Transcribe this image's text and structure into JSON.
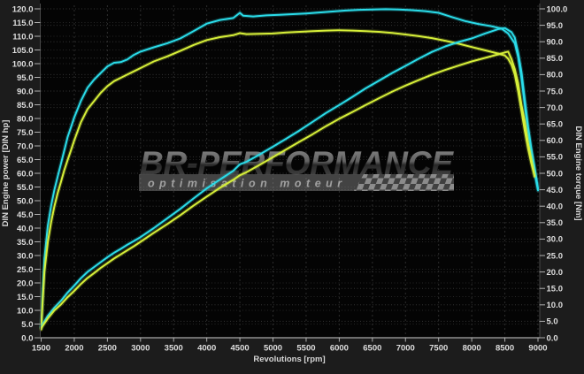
{
  "watermark": {
    "brand": "BR-PERFORMANCE",
    "tagline": "optimisation moteur"
  },
  "chart_data": {
    "type": "line",
    "title": "",
    "xlabel": "Revolutions [rpm]",
    "ylabel_left": "DIN Engine power [DIN hp]",
    "ylabel_right": "DIN Engine torque [Nm]",
    "x_range": [
      1500,
      9000
    ],
    "x_step": 500,
    "y_left_range": [
      0,
      120
    ],
    "y_left_step": 5,
    "y_right_range": [
      0,
      100
    ],
    "y_right_step": 5,
    "grid": true,
    "legend": "none",
    "plot_bg": "#040404",
    "outer_bg": "#1c1c1c",
    "colors": {
      "cyan": "#2adce9",
      "yellow": "#d6ef39"
    },
    "series": [
      {
        "name": "torque-cyan",
        "axis": "right",
        "unit": "Nm",
        "color": "#2adce9",
        "points": [
          [
            1500,
            3
          ],
          [
            1520,
            12
          ],
          [
            1550,
            24
          ],
          [
            1600,
            34
          ],
          [
            1650,
            40
          ],
          [
            1700,
            45
          ],
          [
            1750,
            49
          ],
          [
            1800,
            53
          ],
          [
            1850,
            57
          ],
          [
            1900,
            61
          ],
          [
            1950,
            64
          ],
          [
            2000,
            67
          ],
          [
            2100,
            72
          ],
          [
            2200,
            76
          ],
          [
            2300,
            78.5
          ],
          [
            2400,
            80.5
          ],
          [
            2500,
            82.5
          ],
          [
            2600,
            83.6
          ],
          [
            2700,
            83.8
          ],
          [
            2800,
            84.6
          ],
          [
            2900,
            86
          ],
          [
            3000,
            87
          ],
          [
            3200,
            88.3
          ],
          [
            3400,
            89.5
          ],
          [
            3600,
            91
          ],
          [
            3800,
            93.2
          ],
          [
            4000,
            95.5
          ],
          [
            4200,
            96.6
          ],
          [
            4400,
            97.2
          ],
          [
            4500,
            98.8
          ],
          [
            4550,
            97.9
          ],
          [
            4700,
            97.7
          ],
          [
            4900,
            98
          ],
          [
            5100,
            98.2
          ],
          [
            5300,
            98.4
          ],
          [
            5500,
            98.6
          ],
          [
            5700,
            98.9
          ],
          [
            5900,
            99.2
          ],
          [
            6100,
            99.5
          ],
          [
            6300,
            99.7
          ],
          [
            6500,
            99.8
          ],
          [
            6700,
            99.9
          ],
          [
            6900,
            99.8
          ],
          [
            7100,
            99.6
          ],
          [
            7300,
            99.3
          ],
          [
            7500,
            98.8
          ],
          [
            7700,
            97.5
          ],
          [
            7900,
            96.3
          ],
          [
            8100,
            95.4
          ],
          [
            8300,
            94.7
          ],
          [
            8450,
            94
          ],
          [
            8550,
            92.5
          ],
          [
            8650,
            89.5
          ],
          [
            8700,
            85.5
          ],
          [
            8750,
            79
          ],
          [
            8800,
            71
          ],
          [
            8850,
            63
          ],
          [
            8900,
            56
          ],
          [
            8950,
            50
          ],
          [
            9000,
            44.8
          ]
        ]
      },
      {
        "name": "torque-yellow",
        "axis": "right",
        "unit": "Nm",
        "color": "#d6ef39",
        "points": [
          [
            1500,
            2.5
          ],
          [
            1520,
            10
          ],
          [
            1550,
            20
          ],
          [
            1600,
            29
          ],
          [
            1650,
            35
          ],
          [
            1700,
            40
          ],
          [
            1750,
            44
          ],
          [
            1800,
            47.5
          ],
          [
            1850,
            51
          ],
          [
            1900,
            54
          ],
          [
            1950,
            57
          ],
          [
            2000,
            60
          ],
          [
            2100,
            65.5
          ],
          [
            2200,
            69.5
          ],
          [
            2300,
            72
          ],
          [
            2400,
            74.5
          ],
          [
            2500,
            76.5
          ],
          [
            2600,
            78
          ],
          [
            2700,
            79
          ],
          [
            2800,
            80
          ],
          [
            2900,
            81
          ],
          [
            3000,
            82
          ],
          [
            3200,
            84
          ],
          [
            3400,
            85.5
          ],
          [
            3600,
            87.2
          ],
          [
            3800,
            89
          ],
          [
            4000,
            90.5
          ],
          [
            4200,
            91.4
          ],
          [
            4400,
            92
          ],
          [
            4500,
            92.6
          ],
          [
            4600,
            92.3
          ],
          [
            4800,
            92.4
          ],
          [
            5000,
            92.5
          ],
          [
            5200,
            92.8
          ],
          [
            5400,
            93
          ],
          [
            5600,
            93.2
          ],
          [
            5800,
            93.4
          ],
          [
            6000,
            93.5
          ],
          [
            6200,
            93.4
          ],
          [
            6400,
            93.2
          ],
          [
            6600,
            93
          ],
          [
            6800,
            92.7
          ],
          [
            7000,
            92.2
          ],
          [
            7200,
            91.7
          ],
          [
            7400,
            91.1
          ],
          [
            7600,
            90.3
          ],
          [
            7800,
            89.4
          ],
          [
            8000,
            88.4
          ],
          [
            8200,
            87.4
          ],
          [
            8400,
            86.4
          ],
          [
            8500,
            85.8
          ],
          [
            8550,
            84.8
          ],
          [
            8600,
            83
          ],
          [
            8650,
            80
          ],
          [
            8700,
            75
          ],
          [
            8750,
            69
          ],
          [
            8800,
            63
          ],
          [
            8850,
            57.5
          ],
          [
            8900,
            53
          ],
          [
            8950,
            49
          ]
        ]
      },
      {
        "name": "power-cyan",
        "axis": "left",
        "unit": "DIN hp",
        "color": "#2adce9",
        "points": [
          [
            1500,
            4
          ],
          [
            1600,
            8
          ],
          [
            1700,
            11
          ],
          [
            1800,
            13.5
          ],
          [
            1900,
            16.5
          ],
          [
            2000,
            19
          ],
          [
            2100,
            21.7
          ],
          [
            2200,
            24
          ],
          [
            2300,
            25.8
          ],
          [
            2400,
            27.6
          ],
          [
            2500,
            29.4
          ],
          [
            2600,
            31
          ],
          [
            2700,
            32.4
          ],
          [
            2800,
            33.9
          ],
          [
            2900,
            35.3
          ],
          [
            3000,
            36.7
          ],
          [
            3200,
            40
          ],
          [
            3400,
            43.5
          ],
          [
            3600,
            47
          ],
          [
            3800,
            50.8
          ],
          [
            4000,
            54.5
          ],
          [
            4200,
            57.7
          ],
          [
            4400,
            60.9
          ],
          [
            4500,
            63.3
          ],
          [
            4600,
            64.2
          ],
          [
            4800,
            66.9
          ],
          [
            5000,
            69.7
          ],
          [
            5200,
            72.6
          ],
          [
            5400,
            75.6
          ],
          [
            5600,
            78.8
          ],
          [
            5800,
            82
          ],
          [
            6000,
            84.9
          ],
          [
            6200,
            87.9
          ],
          [
            6400,
            91
          ],
          [
            6600,
            93.8
          ],
          [
            6800,
            96.6
          ],
          [
            7000,
            99.2
          ],
          [
            7200,
            101.8
          ],
          [
            7400,
            104.3
          ],
          [
            7600,
            106.3
          ],
          [
            7800,
            107.9
          ],
          [
            8000,
            109.2
          ],
          [
            8200,
            111
          ],
          [
            8400,
            112.6
          ],
          [
            8500,
            113
          ],
          [
            8600,
            111.5
          ],
          [
            8650,
            109.5
          ],
          [
            8700,
            104
          ],
          [
            8750,
            97
          ],
          [
            8800,
            87
          ],
          [
            8850,
            77
          ],
          [
            8900,
            69
          ],
          [
            8950,
            62
          ],
          [
            9000,
            54.5
          ]
        ]
      },
      {
        "name": "power-yellow",
        "axis": "left",
        "unit": "DIN hp",
        "color": "#d6ef39",
        "points": [
          [
            1500,
            3.5
          ],
          [
            1600,
            7
          ],
          [
            1700,
            10
          ],
          [
            1800,
            12.2
          ],
          [
            1900,
            14.8
          ],
          [
            2000,
            17.1
          ],
          [
            2100,
            19.6
          ],
          [
            2200,
            21.8
          ],
          [
            2300,
            23.6
          ],
          [
            2400,
            25.5
          ],
          [
            2500,
            27.2
          ],
          [
            2600,
            28.9
          ],
          [
            2700,
            30.4
          ],
          [
            2800,
            31.9
          ],
          [
            2900,
            33.4
          ],
          [
            3000,
            35
          ],
          [
            3200,
            38.3
          ],
          [
            3400,
            41.4
          ],
          [
            3600,
            44.7
          ],
          [
            3800,
            48.2
          ],
          [
            4000,
            51.5
          ],
          [
            4200,
            54.7
          ],
          [
            4400,
            57.6
          ],
          [
            4500,
            59.3
          ],
          [
            4600,
            60.4
          ],
          [
            4800,
            63.1
          ],
          [
            5000,
            65.9
          ],
          [
            5200,
            68.7
          ],
          [
            5400,
            71.5
          ],
          [
            5600,
            74.3
          ],
          [
            5800,
            77.2
          ],
          [
            6000,
            79.9
          ],
          [
            6200,
            82.4
          ],
          [
            6400,
            84.9
          ],
          [
            6600,
            87.4
          ],
          [
            6800,
            89.8
          ],
          [
            7000,
            92
          ],
          [
            7200,
            94
          ],
          [
            7400,
            96
          ],
          [
            7600,
            97.7
          ],
          [
            7800,
            99.3
          ],
          [
            8000,
            100.8
          ],
          [
            8200,
            102.1
          ],
          [
            8400,
            103.4
          ],
          [
            8500,
            104.1
          ],
          [
            8550,
            104.4
          ],
          [
            8600,
            101.6
          ],
          [
            8650,
            98
          ],
          [
            8700,
            93
          ],
          [
            8750,
            85
          ],
          [
            8800,
            79
          ],
          [
            8850,
            71
          ],
          [
            8900,
            65
          ],
          [
            8950,
            59
          ]
        ]
      }
    ]
  }
}
